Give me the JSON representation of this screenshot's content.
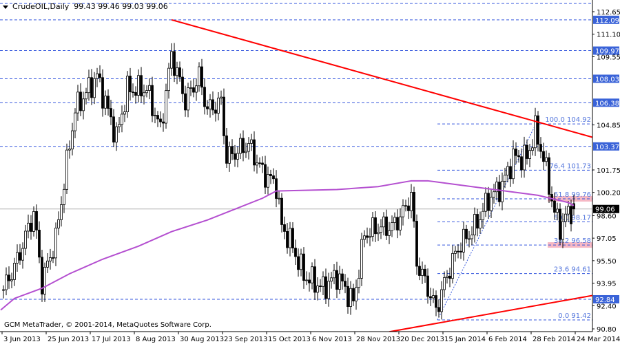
{
  "window": {
    "symbol": "CrudeOIL,Daily",
    "ohlc": "99.43 99.46 99.03 99.06",
    "copyright": "GCM MetaTrader, © 2001-2014, MetaQuotes Software Corp."
  },
  "chart_data": {
    "type": "candlestick",
    "title": "CrudeOIL,Daily",
    "ylim": [
      90.8,
      112.65
    ],
    "y_ticks": [
      "112.65",
      "111.10",
      "109.55",
      "104.85",
      "101.75",
      "100.20",
      "98.60",
      "97.05",
      "95.50",
      "93.95",
      "92.40",
      "90.80"
    ],
    "x_ticks": [
      "3 Jun 2013",
      "25 Jun 2013",
      "17 Jul 2013",
      "8 Aug 2013",
      "30 Aug 2013",
      "23 Sep 2013",
      "15 Oct 2013",
      "6 Nov 2013",
      "28 Nov 2013",
      "20 Dec 2013",
      "15 Jan 2014",
      "6 Feb 2014",
      "28 Feb 2014",
      "24 Mar 2014"
    ],
    "approx_close_path": [
      [
        0,
        93.5
      ],
      [
        5,
        95.5
      ],
      [
        11,
        98.8
      ],
      [
        14,
        94.0
      ],
      [
        19,
        97.0
      ],
      [
        24,
        103.5
      ],
      [
        26,
        105.9
      ],
      [
        34,
        108.2
      ],
      [
        41,
        104.0
      ],
      [
        45,
        107.3
      ],
      [
        52,
        107.3
      ],
      [
        57,
        104.5
      ],
      [
        61,
        109.7
      ],
      [
        66,
        106.5
      ],
      [
        71,
        108.2
      ],
      [
        74,
        105.9
      ],
      [
        79,
        106.4
      ],
      [
        81,
        102.6
      ],
      [
        89,
        103.5
      ],
      [
        94,
        101.6
      ],
      [
        99,
        100.7
      ],
      [
        101,
        97.8
      ],
      [
        104,
        96.9
      ],
      [
        109,
        94.5
      ],
      [
        116,
        93.6
      ],
      [
        121,
        94.5
      ],
      [
        127,
        92.6
      ],
      [
        131,
        97.3
      ],
      [
        136,
        97.8
      ],
      [
        141,
        97.8
      ],
      [
        145,
        98.8
      ],
      [
        148,
        100.0
      ],
      [
        150,
        95.4
      ],
      [
        154,
        93.6
      ],
      [
        157,
        92.1
      ],
      [
        161,
        94.5
      ],
      [
        165,
        96.4
      ],
      [
        171,
        97.8
      ],
      [
        176,
        99.7
      ],
      [
        181,
        100.7
      ],
      [
        185,
        102.6
      ],
      [
        190,
        102.6
      ],
      [
        193,
        104.5
      ],
      [
        196,
        102.6
      ],
      [
        200,
        98.8
      ],
      [
        202,
        97.8
      ],
      [
        205,
        98.8
      ],
      [
        207,
        99.06
      ]
    ],
    "current_price": {
      "value": 99.06,
      "label": "99.06",
      "color": "#000000"
    },
    "horizontal_levels": [
      {
        "value": 112.09,
        "label": "112.09"
      },
      {
        "value": 109.97,
        "label": "109.97"
      },
      {
        "value": 108.03,
        "label": "108.03"
      },
      {
        "value": 106.38,
        "label": "106.38"
      },
      {
        "value": 103.37,
        "label": "103.37"
      },
      {
        "value": 92.84,
        "label": "92.84"
      }
    ],
    "fibonacci": [
      {
        "level": "100.0",
        "value": 104.92,
        "label": "100.0 104.92"
      },
      {
        "level": "76.4",
        "value": 101.73,
        "label": "76.4 101.73"
      },
      {
        "level": "61.8",
        "value": 99.76,
        "label": "61.8 99.76"
      },
      {
        "level": "50.0",
        "value": 98.17,
        "label": "50.0 98.17"
      },
      {
        "level": "38.2",
        "value": 96.58,
        "label": "38.2 96.58"
      },
      {
        "level": "23.6",
        "value": 94.61,
        "label": "23.6 94.61"
      },
      {
        "level": "0.0",
        "value": 91.42,
        "label": "0.0 91.42"
      }
    ],
    "trendlines": [
      {
        "name": "resistance",
        "from": [
          61,
          112.09
        ],
        "to": [
          214,
          104.0
        ]
      },
      {
        "name": "support",
        "from": [
          140,
          90.6
        ],
        "to": [
          214,
          93.1
        ]
      }
    ],
    "moving_average": [
      [
        -1,
        92.1
      ],
      [
        4,
        92.9
      ],
      [
        14,
        93.6
      ],
      [
        24,
        94.6
      ],
      [
        36,
        95.6
      ],
      [
        49,
        96.5
      ],
      [
        61,
        97.5
      ],
      [
        74,
        98.3
      ],
      [
        86,
        99.2
      ],
      [
        94,
        99.8
      ],
      [
        99,
        100.3
      ],
      [
        121,
        100.4
      ],
      [
        136,
        100.6
      ],
      [
        148,
        101.0
      ],
      [
        154,
        101.0
      ],
      [
        174,
        100.5
      ],
      [
        194,
        100.0
      ],
      [
        205,
        99.5
      ],
      [
        207,
        99.3
      ]
    ],
    "colors": {
      "bull": "#ffffff",
      "bear": "#000000",
      "level": "#3355dd",
      "label_bg": "#3a63d8",
      "trendline": "#ff0000",
      "ma": "#b44fd0",
      "fib": "#5577dd",
      "zone": "#f6b8c4",
      "price_line": "#b0b0b0"
    }
  }
}
